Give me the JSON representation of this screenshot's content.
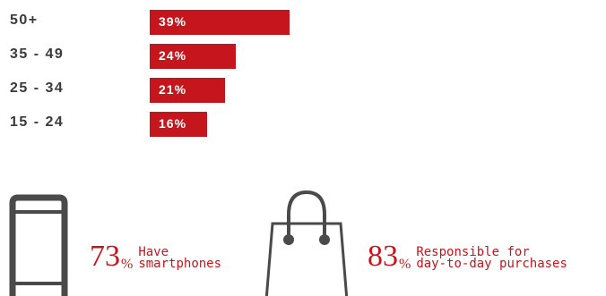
{
  "chart_data": {
    "type": "bar",
    "orientation": "horizontal",
    "categories": [
      "50+",
      "35 - 49",
      "25 - 34",
      "15 - 24"
    ],
    "values": [
      39,
      24,
      21,
      16
    ],
    "value_labels": [
      "39%",
      "24%",
      "21%",
      "16%"
    ],
    "xlim": [
      0,
      100
    ],
    "grid": false,
    "colors": {
      "bar": "#c4161c",
      "label": "#3a3a3a",
      "bar_text": "#ffffff"
    }
  },
  "stats": [
    {
      "icon": "smartphone-icon",
      "value": "73",
      "unit": "%",
      "lines": [
        "Have",
        "smartphones"
      ]
    },
    {
      "icon": "shopping-bag-icon",
      "value": "83",
      "unit": "%",
      "lines": [
        "Responsible for",
        "day-to-day purchases"
      ]
    }
  ],
  "colors": {
    "accent": "#c4161c",
    "icon": "#4a4a4a"
  }
}
